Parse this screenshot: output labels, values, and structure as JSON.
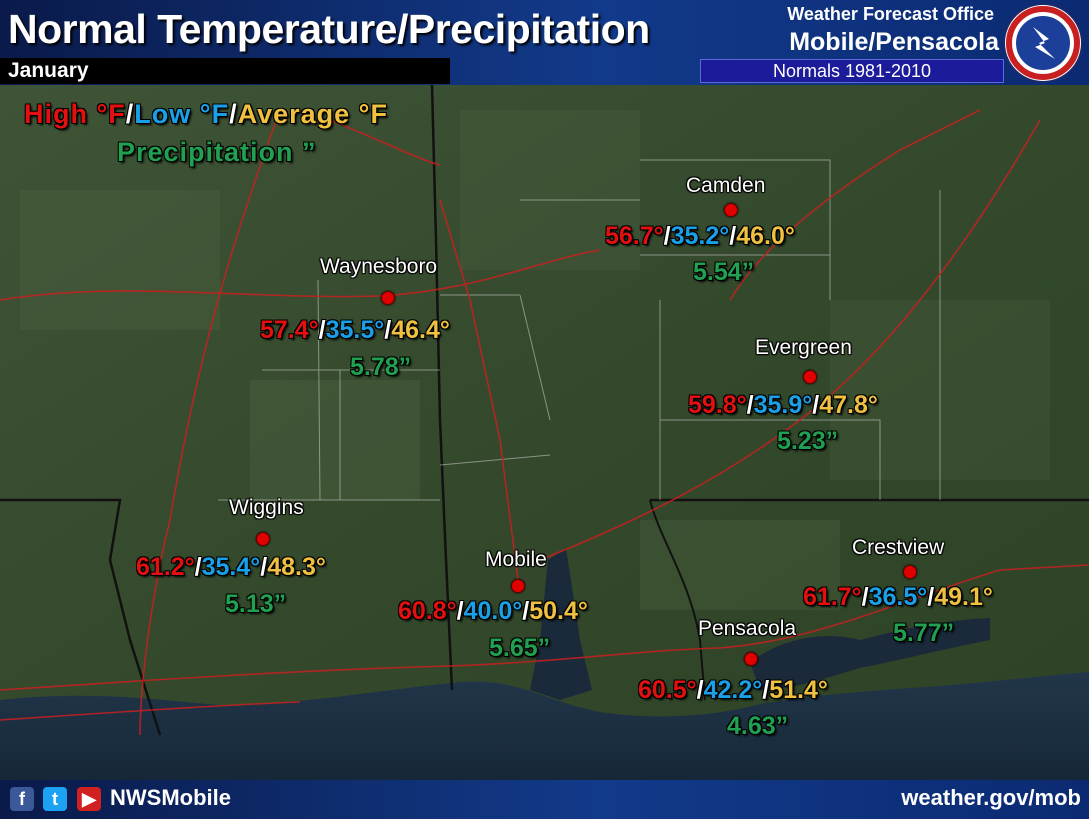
{
  "header": {
    "title": "Normal Temperature/Precipitation",
    "month": "January",
    "wfo_label": "Weather Forecast Office",
    "office": "Mobile/Pensacola",
    "normals_period": "Normals 1981-2010",
    "logo_icon": "nws-logo-icon"
  },
  "legend": {
    "high": "High °F",
    "slash1": "/",
    "low": "Low °F",
    "slash2": "/",
    "average": "Average °F",
    "precip": "Precipitation ”"
  },
  "colors": {
    "high": "#e41010",
    "low": "#1aa0e8",
    "average": "#f0c040",
    "precip": "#20a050",
    "station_dot": "#e00000"
  },
  "stations": [
    {
      "name": "Camden",
      "high": "56.7°",
      "low": "35.2°",
      "avg": "46.0°",
      "precip": "5.54”"
    },
    {
      "name": "Waynesboro",
      "high": "57.4°",
      "low": "35.5°",
      "avg": "46.4°",
      "precip": "5.78”"
    },
    {
      "name": "Evergreen",
      "high": "59.8°",
      "low": "35.9°",
      "avg": "47.8°",
      "precip": "5.23”"
    },
    {
      "name": "Wiggins",
      "high": "61.2°",
      "low": "35.4°",
      "avg": "48.3°",
      "precip": "5.13”"
    },
    {
      "name": "Mobile",
      "high": "60.8°",
      "low": "40.0°",
      "avg": "50.4°",
      "precip": "5.65”"
    },
    {
      "name": "Crestview",
      "high": "61.7°",
      "low": "36.5°",
      "avg": "49.1°",
      "precip": "5.77”"
    },
    {
      "name": "Pensacola",
      "high": "60.5°",
      "low": "42.2°",
      "avg": "51.4°",
      "precip": "4.63”"
    }
  ],
  "footer": {
    "facebook_icon": "facebook-icon",
    "twitter_icon": "twitter-icon",
    "youtube_icon": "youtube-icon",
    "handle": "NWSMobile",
    "website": "weather.gov/mob"
  }
}
